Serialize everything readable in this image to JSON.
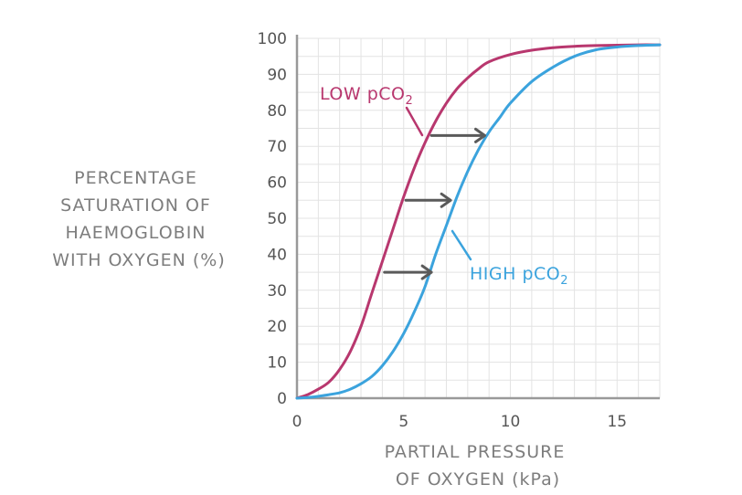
{
  "chart_data": {
    "type": "line",
    "title": "",
    "ylabel_lines": [
      "PERCENTAGE",
      "SATURATION OF",
      "HAEMOGLOBIN",
      "WITH OXYGEN (%)"
    ],
    "xlabel_lines": [
      "PARTIAL PRESSURE",
      "OF OXYGEN (kPa)"
    ],
    "xlim": [
      0,
      17
    ],
    "ylim": [
      0,
      100
    ],
    "x_ticks": [
      0,
      5,
      10,
      15
    ],
    "y_ticks": [
      0,
      10,
      20,
      30,
      40,
      50,
      60,
      70,
      80,
      90,
      100
    ],
    "grid": true,
    "series": [
      {
        "name_main": "LOW pCO",
        "name_sub": "2",
        "color": "#b8376e",
        "x": [
          0,
          0.5,
          1,
          1.5,
          2,
          2.5,
          3,
          3.5,
          4,
          4.5,
          5,
          5.5,
          6,
          6.5,
          7,
          7.5,
          8,
          8.5,
          9,
          10,
          11,
          12,
          13,
          14,
          15,
          16,
          17
        ],
        "y": [
          0,
          1,
          2.5,
          4.5,
          8,
          13,
          20,
          29,
          38,
          47,
          56,
          64,
          71,
          77,
          82,
          86,
          89,
          91.5,
          93.5,
          95.5,
          96.7,
          97.4,
          97.8,
          98,
          98.1,
          98.2,
          98.2
        ]
      },
      {
        "name_main": "HIGH pCO",
        "name_sub": "2",
        "color": "#3ba3dd",
        "x": [
          0,
          0.5,
          1,
          1.5,
          2,
          2.5,
          3,
          3.5,
          4,
          4.5,
          5,
          5.5,
          6,
          6.5,
          7,
          7.5,
          8,
          8.5,
          9,
          9.5,
          10,
          11,
          12,
          13,
          14,
          15,
          16,
          17
        ],
        "y": [
          0,
          0.2,
          0.5,
          1,
          1.5,
          2.5,
          4,
          6,
          9,
          13,
          18,
          24,
          31,
          40,
          48,
          56,
          63,
          69,
          74,
          78,
          82,
          88,
          92,
          95,
          96.8,
          97.6,
          98,
          98.2
        ]
      }
    ],
    "annotations": {
      "shift_arrows": [
        {
          "from_x": 6.3,
          "to_x": 8.8,
          "y": 73
        },
        {
          "from_x": 5.1,
          "to_x": 7.2,
          "y": 55
        },
        {
          "from_x": 4.1,
          "to_x": 6.3,
          "y": 35
        }
      ],
      "arrow_color": "#5a5a5a"
    }
  }
}
